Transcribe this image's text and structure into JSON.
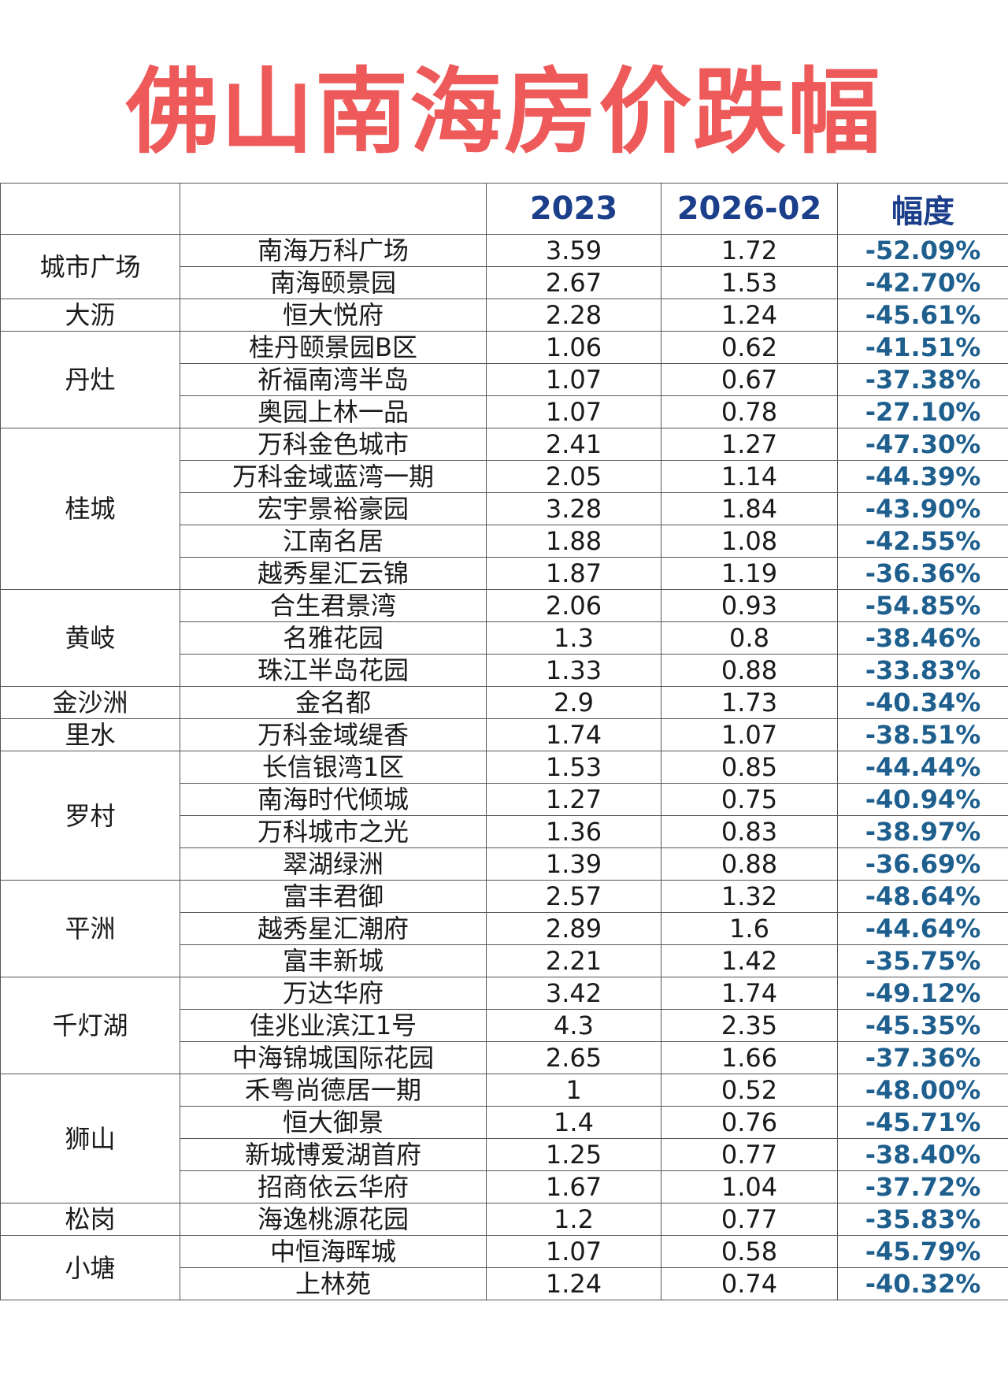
{
  "title": "佛山南海房价跌幅",
  "header": {
    "district": "",
    "project": "",
    "year_a": "2023",
    "year_b": "2026-02",
    "change": "幅度"
  },
  "groups": [
    {
      "district": "城市广场",
      "rows": [
        {
          "project": "南海万科广场",
          "v2023": "3.59",
          "v2026": "1.72",
          "change": "-52.09%"
        },
        {
          "project": "南海颐景园",
          "v2023": "2.67",
          "v2026": "1.53",
          "change": "-42.70%"
        }
      ]
    },
    {
      "district": "大沥",
      "rows": [
        {
          "project": "恒大悦府",
          "v2023": "2.28",
          "v2026": "1.24",
          "change": "-45.61%"
        }
      ]
    },
    {
      "district": "丹灶",
      "rows": [
        {
          "project": "桂丹颐景园B区",
          "v2023": "1.06",
          "v2026": "0.62",
          "change": "-41.51%"
        },
        {
          "project": "祈福南湾半岛",
          "v2023": "1.07",
          "v2026": "0.67",
          "change": "-37.38%"
        },
        {
          "project": "奥园上林一品",
          "v2023": "1.07",
          "v2026": "0.78",
          "change": "-27.10%"
        }
      ]
    },
    {
      "district": "桂城",
      "rows": [
        {
          "project": "万科金色城市",
          "v2023": "2.41",
          "v2026": "1.27",
          "change": "-47.30%"
        },
        {
          "project": "万科金域蓝湾一期",
          "v2023": "2.05",
          "v2026": "1.14",
          "change": "-44.39%"
        },
        {
          "project": "宏宇景裕豪园",
          "v2023": "3.28",
          "v2026": "1.84",
          "change": "-43.90%"
        },
        {
          "project": "江南名居",
          "v2023": "1.88",
          "v2026": "1.08",
          "change": "-42.55%"
        },
        {
          "project": "越秀星汇云锦",
          "v2023": "1.87",
          "v2026": "1.19",
          "change": "-36.36%"
        }
      ]
    },
    {
      "district": "黄岐",
      "rows": [
        {
          "project": "合生君景湾",
          "v2023": "2.06",
          "v2026": "0.93",
          "change": "-54.85%"
        },
        {
          "project": "名雅花园",
          "v2023": "1.3",
          "v2026": "0.8",
          "change": "-38.46%"
        },
        {
          "project": "珠江半岛花园",
          "v2023": "1.33",
          "v2026": "0.88",
          "change": "-33.83%"
        }
      ]
    },
    {
      "district": "金沙洲",
      "rows": [
        {
          "project": "金名都",
          "v2023": "2.9",
          "v2026": "1.73",
          "change": "-40.34%"
        }
      ]
    },
    {
      "district": "里水",
      "rows": [
        {
          "project": "万科金域缇香",
          "v2023": "1.74",
          "v2026": "1.07",
          "change": "-38.51%"
        }
      ]
    },
    {
      "district": "罗村",
      "rows": [
        {
          "project": "长信银湾1区",
          "v2023": "1.53",
          "v2026": "0.85",
          "change": "-44.44%"
        },
        {
          "project": "南海时代倾城",
          "v2023": "1.27",
          "v2026": "0.75",
          "change": "-40.94%"
        },
        {
          "project": "万科城市之光",
          "v2023": "1.36",
          "v2026": "0.83",
          "change": "-38.97%"
        },
        {
          "project": "翠湖绿洲",
          "v2023": "1.39",
          "v2026": "0.88",
          "change": "-36.69%"
        }
      ]
    },
    {
      "district": "平洲",
      "rows": [
        {
          "project": "富丰君御",
          "v2023": "2.57",
          "v2026": "1.32",
          "change": "-48.64%"
        },
        {
          "project": "越秀星汇潮府",
          "v2023": "2.89",
          "v2026": "1.6",
          "change": "-44.64%"
        },
        {
          "project": "富丰新城",
          "v2023": "2.21",
          "v2026": "1.42",
          "change": "-35.75%"
        }
      ]
    },
    {
      "district": "千灯湖",
      "rows": [
        {
          "project": "万达华府",
          "v2023": "3.42",
          "v2026": "1.74",
          "change": "-49.12%"
        },
        {
          "project": "佳兆业滨江1号",
          "v2023": "4.3",
          "v2026": "2.35",
          "change": "-45.35%"
        },
        {
          "project": "中海锦城国际花园",
          "v2023": "2.65",
          "v2026": "1.66",
          "change": "-37.36%"
        }
      ]
    },
    {
      "district": "狮山",
      "rows": [
        {
          "project": "禾粤尚德居一期",
          "v2023": "1",
          "v2026": "0.52",
          "change": "-48.00%"
        },
        {
          "project": "恒大御景",
          "v2023": "1.4",
          "v2026": "0.76",
          "change": "-45.71%"
        },
        {
          "project": "新城博爱湖首府",
          "v2023": "1.25",
          "v2026": "0.77",
          "change": "-38.40%"
        },
        {
          "project": "招商依云华府",
          "v2023": "1.67",
          "v2026": "1.04",
          "change": "-37.72%"
        }
      ]
    },
    {
      "district": "松岗",
      "rows": [
        {
          "project": "海逸桃源花园",
          "v2023": "1.2",
          "v2026": "0.77",
          "change": "-35.83%"
        }
      ]
    },
    {
      "district": "小塘",
      "rows": [
        {
          "project": "中恒海晖城",
          "v2023": "1.07",
          "v2026": "0.58",
          "change": "-45.79%"
        },
        {
          "project": "上林苑",
          "v2023": "1.24",
          "v2026": "0.74",
          "change": "-40.32%"
        }
      ]
    }
  ]
}
